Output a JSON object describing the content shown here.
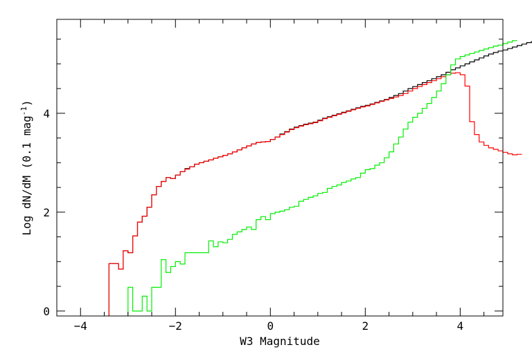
{
  "chart_data": {
    "type": "line",
    "step": true,
    "xlabel": "W3 Magnitude",
    "ylabel_main": "Log dN/dM (0.1 mag",
    "ylabel_sup": "-1",
    "ylabel_close": ")",
    "xlim": [
      -4.5,
      4.9
    ],
    "ylim": [
      -0.1,
      5.9
    ],
    "x_major_ticks": [
      -4,
      -2,
      0,
      2,
      4
    ],
    "x_minor_step": 0.5,
    "y_major_ticks": [
      0,
      2,
      4
    ],
    "y_minor_step": 0.5,
    "grid": false,
    "legend": "none",
    "bin_start": -3.4,
    "bin_width": 0.1,
    "series": [
      {
        "color": "#000000",
        "values": [
          0.96,
          0.96,
          0.85,
          1.22,
          1.18,
          1.52,
          1.8,
          1.92,
          2.1,
          2.35,
          2.52,
          2.62,
          2.7,
          2.68,
          2.75,
          2.82,
          2.88,
          2.92,
          2.97,
          3.0,
          3.03,
          3.06,
          3.09,
          3.12,
          3.15,
          3.18,
          3.22,
          3.26,
          3.3,
          3.34,
          3.38,
          3.41,
          3.42,
          3.43,
          3.47,
          3.52,
          3.58,
          3.63,
          3.68,
          3.72,
          3.75,
          3.78,
          3.8,
          3.82,
          3.86,
          3.9,
          3.93,
          3.96,
          3.99,
          4.02,
          4.05,
          4.08,
          4.11,
          4.14,
          4.16,
          4.19,
          4.22,
          4.25,
          4.28,
          4.32,
          4.36,
          4.4,
          4.45,
          4.5,
          4.54,
          4.58,
          4.62,
          4.66,
          4.7,
          4.74,
          4.78,
          4.83,
          4.88,
          4.92,
          4.96,
          5.0,
          5.04,
          5.08,
          5.12,
          5.16,
          5.2,
          5.23,
          5.26,
          5.28,
          5.31,
          5.34,
          5.37,
          5.4,
          5.43,
          5.45
        ]
      },
      {
        "color": "#ff0000",
        "values": [
          0.96,
          0.96,
          0.85,
          1.22,
          1.18,
          1.52,
          1.8,
          1.92,
          2.1,
          2.35,
          2.52,
          2.62,
          2.7,
          2.68,
          2.75,
          2.82,
          2.87,
          2.92,
          2.97,
          3.0,
          3.03,
          3.06,
          3.09,
          3.12,
          3.15,
          3.18,
          3.22,
          3.26,
          3.3,
          3.34,
          3.38,
          3.41,
          3.42,
          3.43,
          3.47,
          3.52,
          3.57,
          3.62,
          3.67,
          3.71,
          3.74,
          3.77,
          3.79,
          3.81,
          3.85,
          3.89,
          3.92,
          3.95,
          3.98,
          4.01,
          4.04,
          4.07,
          4.1,
          4.13,
          4.15,
          4.18,
          4.21,
          4.24,
          4.27,
          4.3,
          4.33,
          4.36,
          4.4,
          4.45,
          4.5,
          4.54,
          4.58,
          4.62,
          4.66,
          4.7,
          4.74,
          4.78,
          4.81,
          4.82,
          4.78,
          4.55,
          3.83,
          3.57,
          3.42,
          3.35,
          3.3,
          3.27,
          3.24,
          3.21,
          3.18,
          3.16,
          3.17
        ]
      },
      {
        "color": "#00ee00",
        "values": [
          null,
          null,
          null,
          null,
          0.48,
          0.0,
          0.0,
          0.3,
          0.0,
          0.48,
          0.48,
          1.04,
          0.78,
          0.9,
          1.0,
          0.95,
          1.18,
          1.18,
          1.18,
          1.18,
          1.18,
          1.42,
          1.3,
          1.4,
          1.38,
          1.45,
          1.55,
          1.6,
          1.65,
          1.7,
          1.65,
          1.85,
          1.91,
          1.85,
          1.97,
          2.0,
          2.02,
          2.05,
          2.1,
          2.12,
          2.22,
          2.26,
          2.3,
          2.33,
          2.38,
          2.4,
          2.48,
          2.52,
          2.55,
          2.6,
          2.63,
          2.67,
          2.7,
          2.79,
          2.86,
          2.88,
          2.95,
          3.0,
          3.1,
          3.22,
          3.38,
          3.52,
          3.68,
          3.82,
          3.92,
          4.0,
          4.1,
          4.2,
          4.32,
          4.45,
          4.6,
          4.78,
          4.98,
          5.1,
          5.15,
          5.18,
          5.21,
          5.24,
          5.27,
          5.3,
          5.33,
          5.36,
          5.38,
          5.41,
          5.44,
          5.47
        ]
      }
    ]
  }
}
